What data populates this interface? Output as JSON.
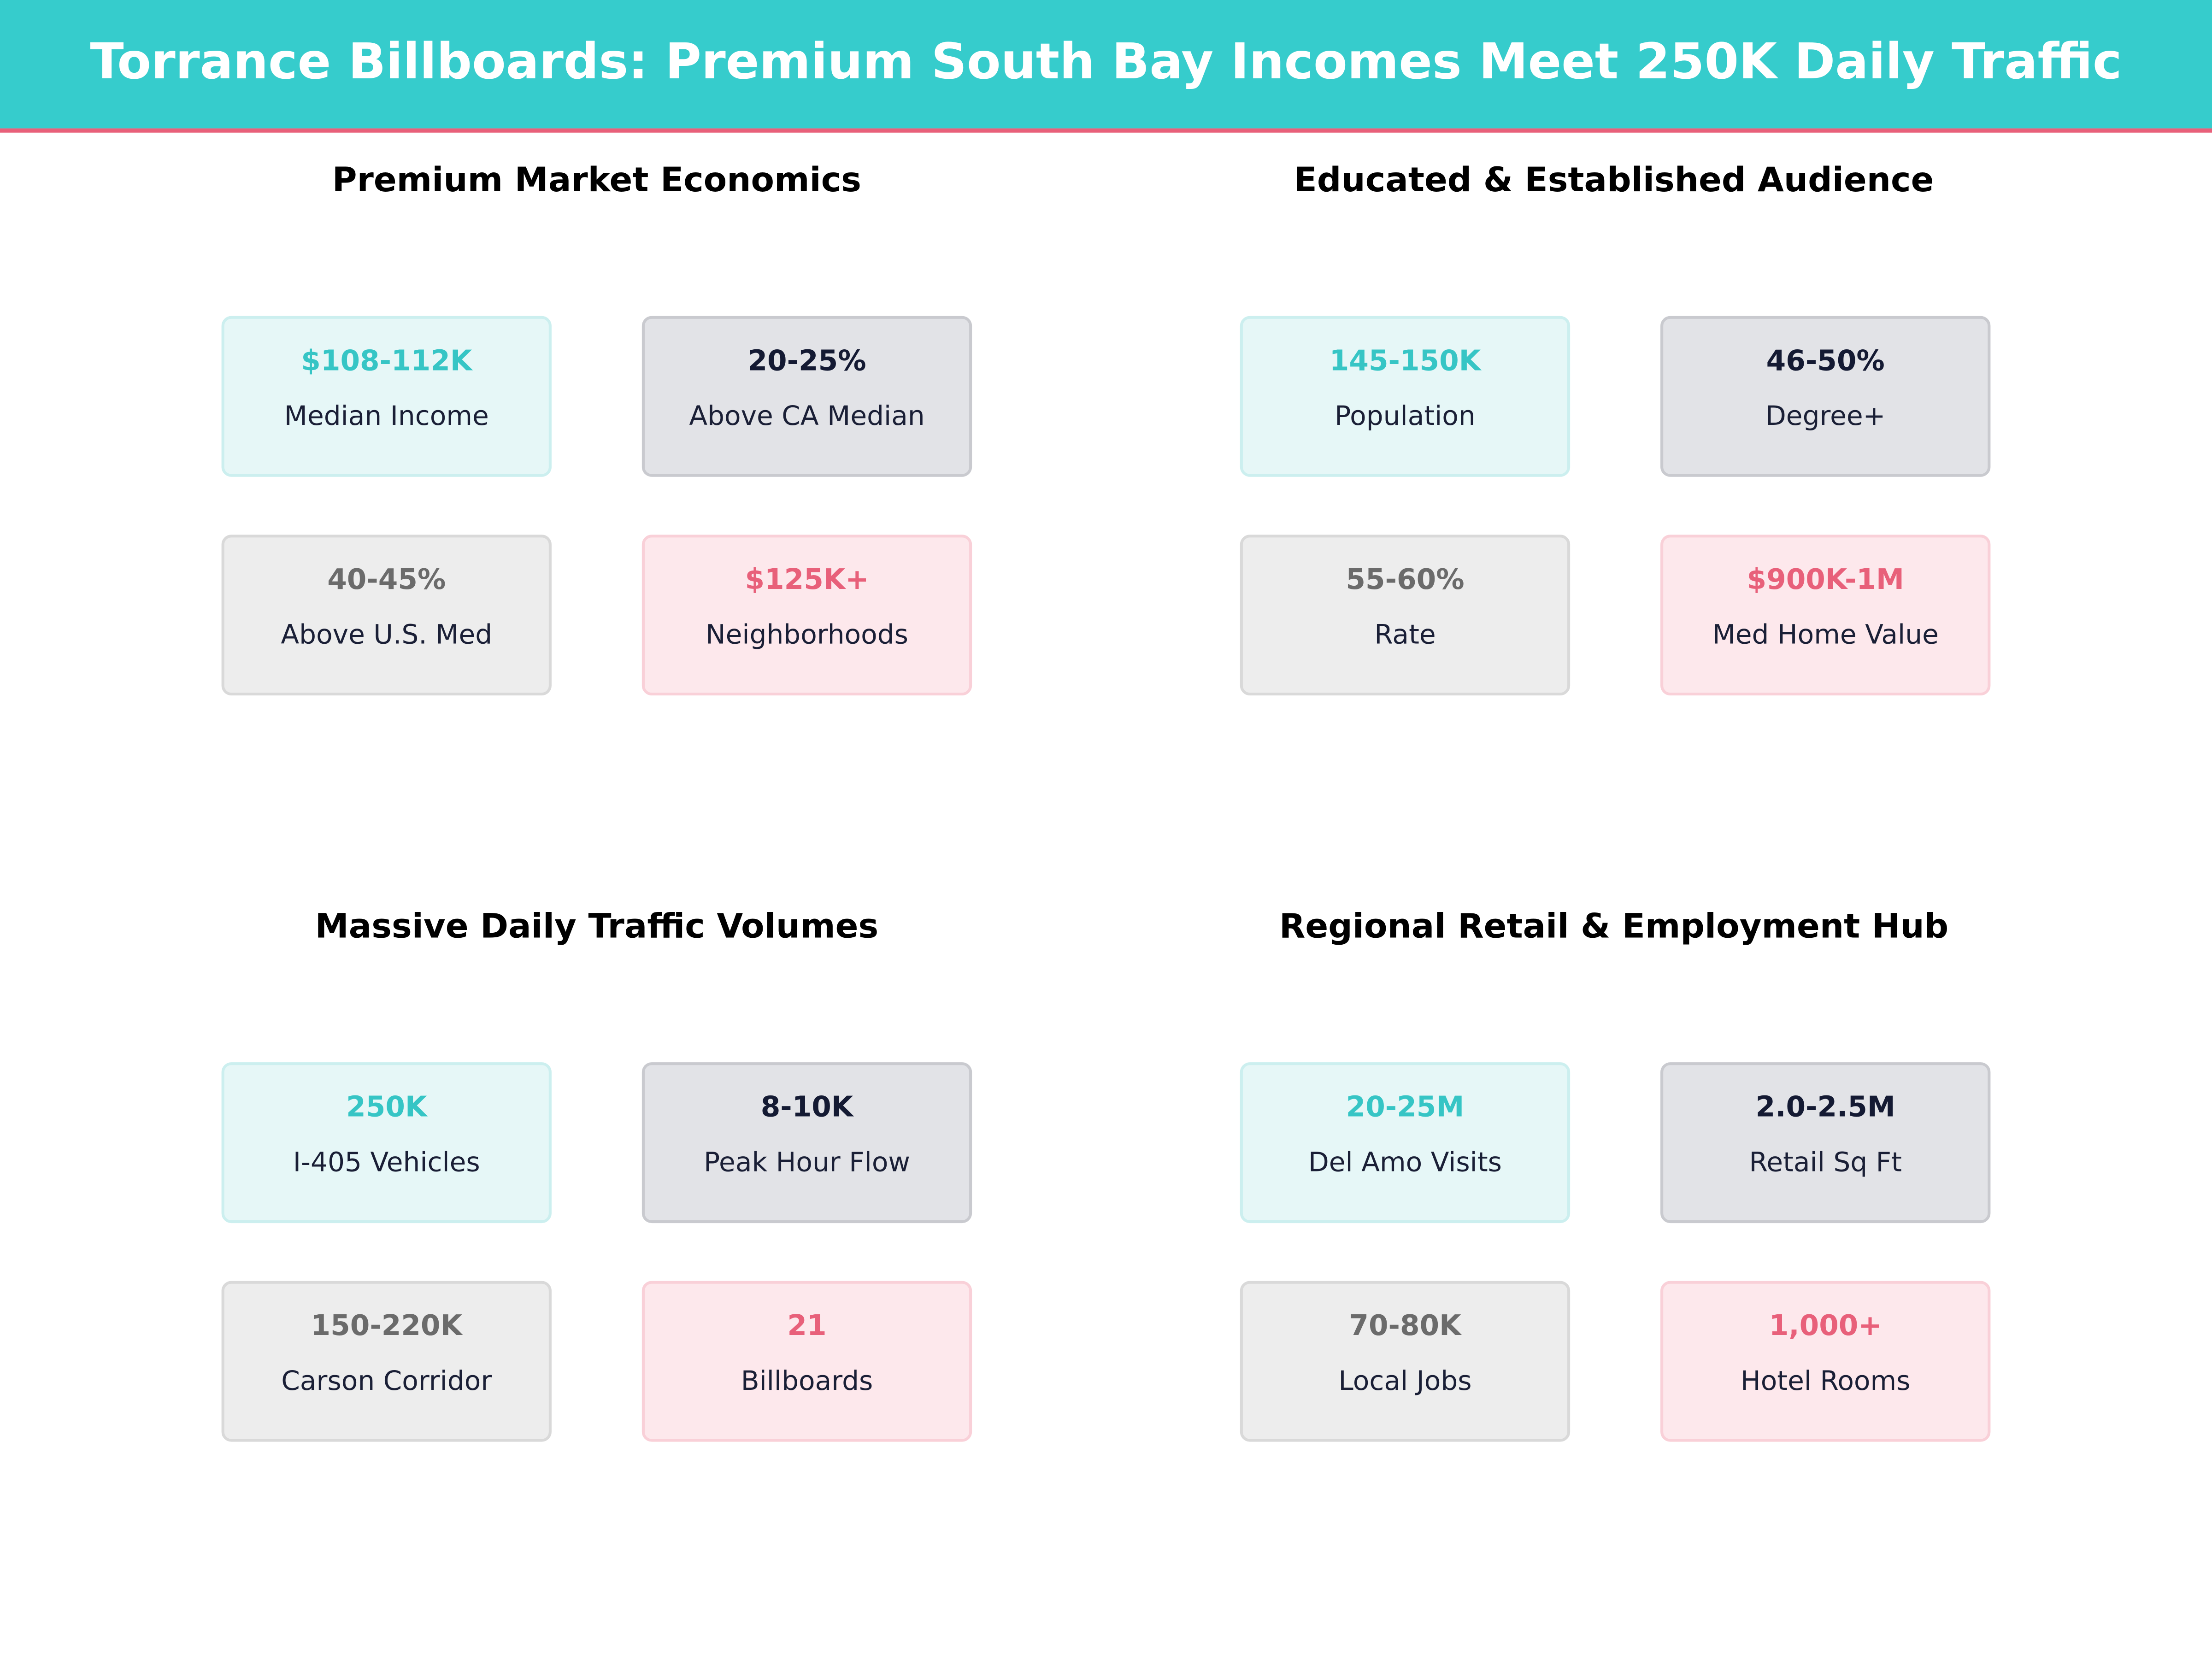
{
  "header": {
    "title": "Torrance Billboards: Premium South Bay Incomes Meet 250K Daily Traffic"
  },
  "panels": [
    {
      "title": "Premium Market Economics",
      "cards": [
        {
          "value": "$108-112K",
          "label": "Median Income"
        },
        {
          "value": "20-25%",
          "label": "Above CA Median"
        },
        {
          "value": "40-45%",
          "label": "Above U.S. Med"
        },
        {
          "value": "$125K+",
          "label": "Neighborhoods"
        }
      ]
    },
    {
      "title": "Educated & Established Audience",
      "cards": [
        {
          "value": "145-150K",
          "label": "Population"
        },
        {
          "value": "46-50%",
          "label": "Degree+"
        },
        {
          "value": "55-60%",
          "label": "Rate"
        },
        {
          "value": "$900K-1M",
          "label": "Med Home Value"
        }
      ]
    },
    {
      "title": "Massive Daily Traffic Volumes",
      "cards": [
        {
          "value": "250K",
          "label": "I-405  Vehicles"
        },
        {
          "value": "8-10K",
          "label": "Peak Hour Flow"
        },
        {
          "value": "150-220K",
          "label": "Carson Corridor"
        },
        {
          "value": "21",
          "label": "Billboards"
        }
      ]
    },
    {
      "title": "Regional Retail & Employment Hub",
      "cards": [
        {
          "value": "20-25M",
          "label": "Del Amo Visits"
        },
        {
          "value": "2.0-2.5M",
          "label": "Retail Sq Ft"
        },
        {
          "value": "70-80K",
          "label": "Local Jobs"
        },
        {
          "value": "1,000+",
          "label": "Hotel Rooms"
        }
      ]
    }
  ]
}
